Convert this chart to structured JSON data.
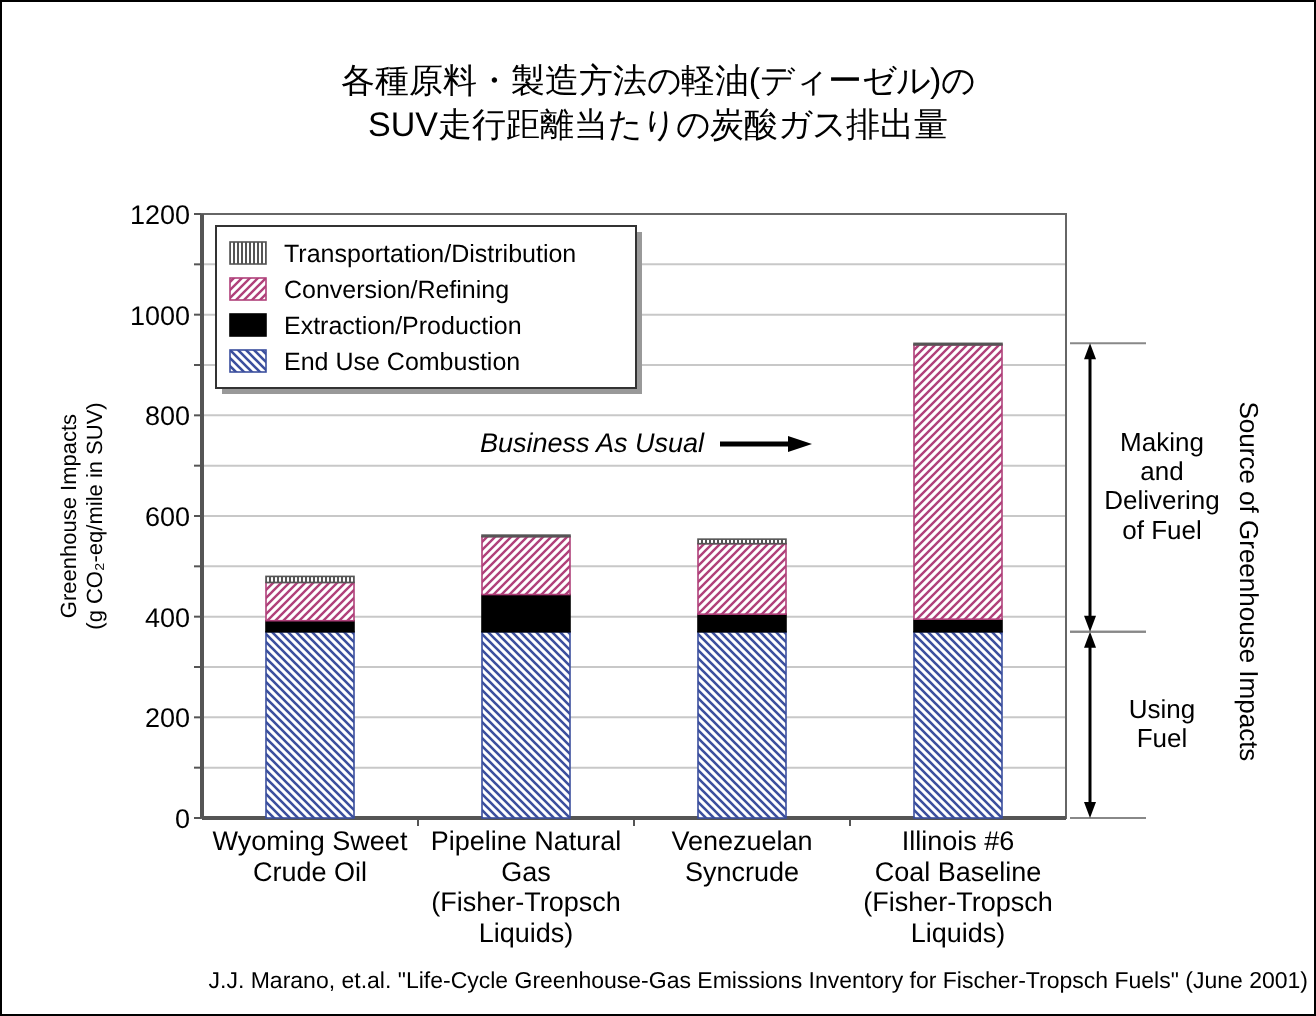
{
  "chart_data": {
    "type": "bar",
    "stacked": true,
    "title": "各種原料・製造方法の軽油(ディーゼル)の\nSUV走行距離当たりの炭酸ガス排出量",
    "ylabel": "Greenhouse Impacts\n(g CO₂-eq/mile in SUV)",
    "categories": [
      "Wyoming Sweet\nCrude Oil",
      "Pipeline Natural\nGas\n(Fisher-Tropsch\nLiquids)",
      "Venezuelan\nSyncrude",
      "Illinois #6\nCoal Baseline\n(Fisher-Tropsch\nLiquids)"
    ],
    "series": [
      {
        "name": "End Use Combustion",
        "color": "#3b4f9e",
        "values": [
          370,
          370,
          370,
          370
        ]
      },
      {
        "name": "Extraction/Production",
        "color": "#000000",
        "values": [
          22,
          74,
          35,
          25
        ]
      },
      {
        "name": "Conversion/Refining",
        "color": "#b0407a",
        "values": [
          76,
          115,
          140,
          545
        ]
      },
      {
        "name": "Transportation/Distribution",
        "color": "#555555",
        "values": [
          12,
          3,
          9,
          3
        ]
      }
    ],
    "ylim": [
      0,
      1200
    ],
    "yticks": [
      0,
      {
        "value": 100,
        "label": null
      },
      200,
      {
        "value": 300,
        "label": null
      },
      400,
      {
        "value": 500,
        "label": null
      },
      600,
      {
        "value": 700,
        "label": null
      },
      800,
      {
        "value": 900,
        "label": null
      },
      1000,
      {
        "value": 1100,
        "label": null
      },
      1200
    ],
    "grid": "y",
    "legend": "top left",
    "annotations": [
      "Business As Usual",
      "Source of Greenhouse Impacts",
      "Using\nFuel",
      "Making\nand\nDelivering\nof  Fuel",
      "J.J. Marano, et.al. \"Life-Cycle Greenhouse-Gas Emissions Inventory for Fischer-Tropsch Fuels\" (June 2001)"
    ]
  }
}
